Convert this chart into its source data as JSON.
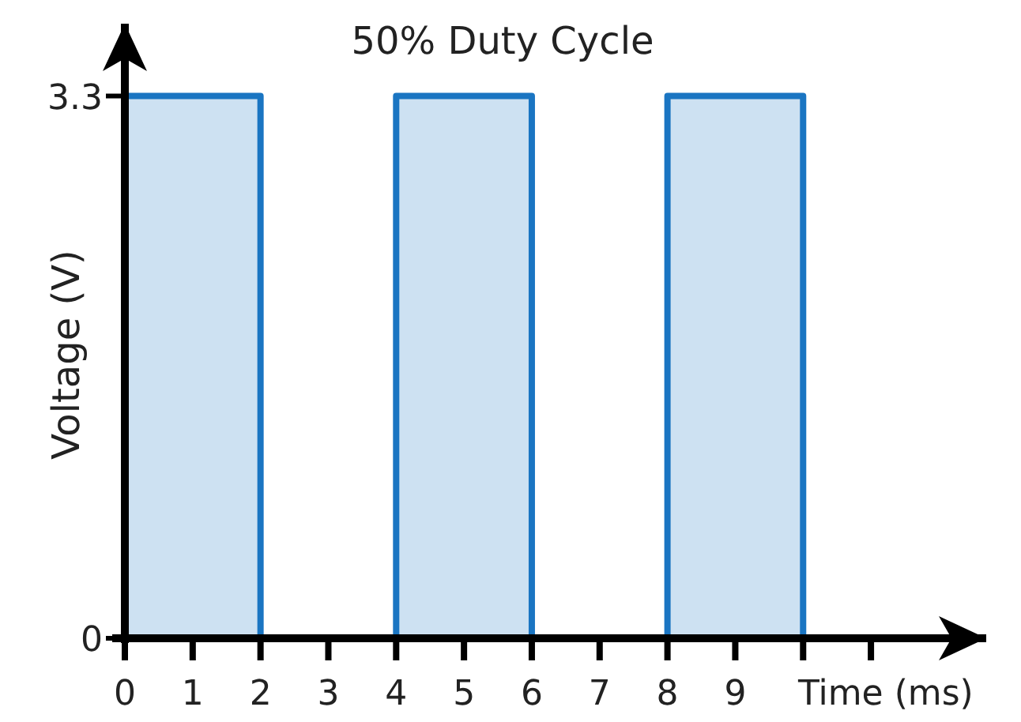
{
  "chart_data": {
    "type": "step",
    "title": "50% Duty Cycle",
    "xlabel": "Time (ms)",
    "ylabel": "Voltage (V)",
    "x": [
      0,
      2,
      4,
      6,
      8,
      10,
      12
    ],
    "series": [
      {
        "color": "#1a75c2",
        "values": [
          3.3,
          0,
          3.3,
          0,
          3.3,
          0,
          0
        ]
      }
    ],
    "xlim": [
      0,
      12.7
    ],
    "ylim": [
      0,
      3.74
    ],
    "xticks": [
      0,
      1,
      2,
      3,
      4,
      5,
      6,
      7,
      8,
      9,
      {
        "value": 10,
        "label": null
      },
      {
        "value": 11,
        "label": null
      }
    ],
    "yticks": [
      0,
      3.3
    ],
    "grid": false
  }
}
